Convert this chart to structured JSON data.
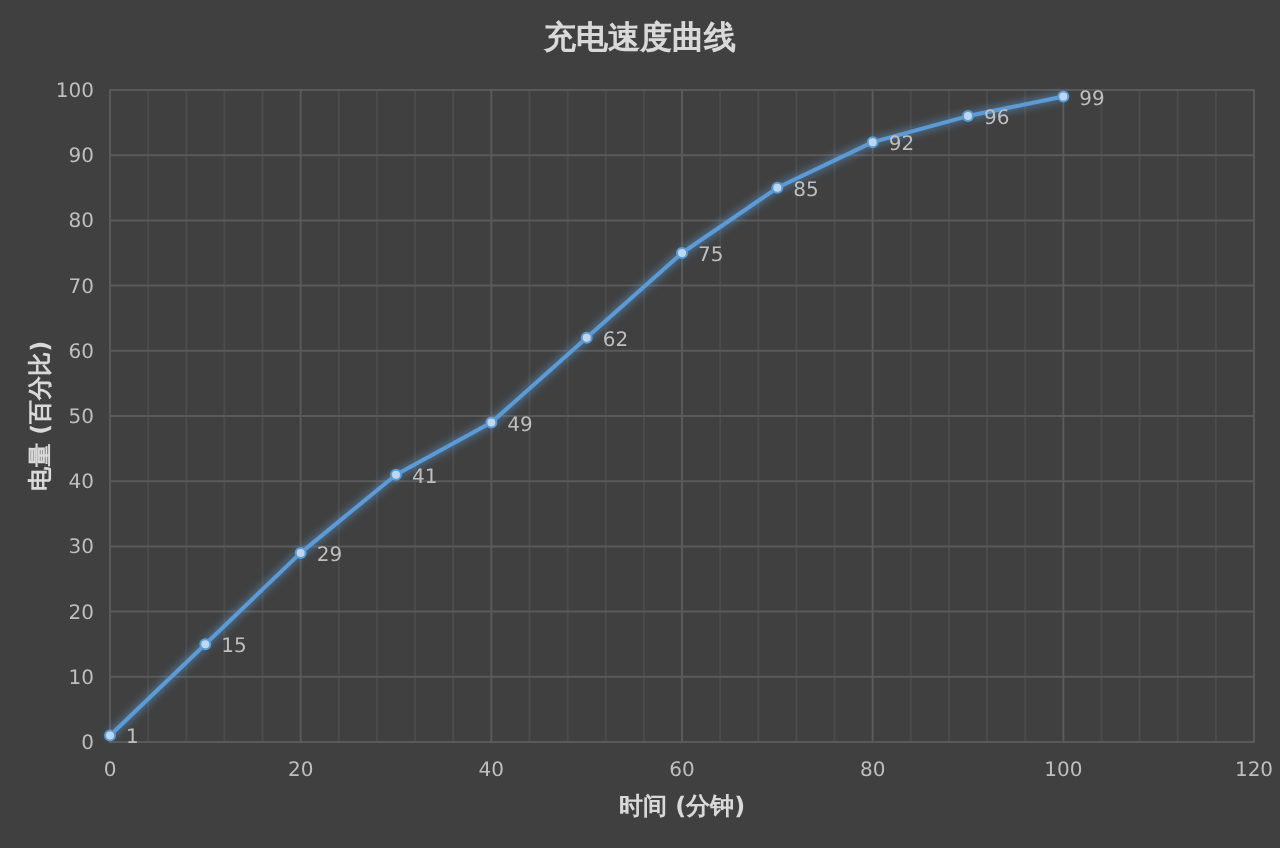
{
  "chart_data": {
    "type": "line",
    "title": "充电速度曲线",
    "xlabel": "时间 (分钟)",
    "ylabel": "电量 (百分比)",
    "x": [
      0,
      10,
      20,
      30,
      40,
      50,
      60,
      70,
      80,
      90,
      100
    ],
    "values": [
      1,
      15,
      29,
      41,
      49,
      62,
      75,
      85,
      92,
      96,
      99
    ],
    "color": "#5b9bd5",
    "marker": "circle",
    "line_style": "solid",
    "data_labels": true,
    "grid": true,
    "xlim": [
      0,
      120
    ],
    "xticks": [
      0,
      {
        "value": 4,
        "label": null
      },
      {
        "value": 8,
        "label": null
      },
      {
        "value": 12,
        "label": null
      },
      {
        "value": 16,
        "label": null
      },
      20,
      {
        "value": 24,
        "label": null
      },
      {
        "value": 28,
        "label": null
      },
      {
        "value": 32,
        "label": null
      },
      {
        "value": 36,
        "label": null
      },
      40,
      {
        "value": 44,
        "label": null
      },
      {
        "value": 48,
        "label": null
      },
      {
        "value": 52,
        "label": null
      },
      {
        "value": 56,
        "label": null
      },
      60,
      {
        "value": 64,
        "label": null
      },
      {
        "value": 68,
        "label": null
      },
      {
        "value": 72,
        "label": null
      },
      {
        "value": 76,
        "label": null
      },
      80,
      {
        "value": 84,
        "label": null
      },
      {
        "value": 88,
        "label": null
      },
      {
        "value": 92,
        "label": null
      },
      {
        "value": 96,
        "label": null
      },
      100,
      {
        "value": 104,
        "label": null
      },
      {
        "value": 108,
        "label": null
      },
      {
        "value": 112,
        "label": null
      },
      {
        "value": 116,
        "label": null
      },
      120
    ],
    "ylim": [
      0,
      100
    ],
    "yticks": [
      0,
      10,
      20,
      30,
      40,
      50,
      60,
      70,
      80,
      90,
      100
    ]
  }
}
